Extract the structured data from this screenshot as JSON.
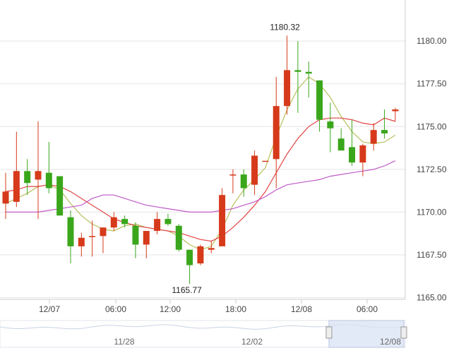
{
  "chart_data": {
    "type": "candlestick",
    "y_axis": {
      "ticks": [
        "1180.00",
        "1177.50",
        "1175.00",
        "1172.50",
        "1170.00",
        "1167.50",
        "1165.00"
      ],
      "range": [
        1164.9,
        1182.4
      ],
      "position": "right"
    },
    "x_axis": {
      "ticks": [
        "12/07",
        "06:00",
        "12:00",
        "18:00",
        "12/08",
        "06:00"
      ]
    },
    "colors": {
      "up": "#d63a1a",
      "down": "#3aa61b",
      "ma_short": "#b8bf5a",
      "ma_mid": "#e14444",
      "ma_long": "#c05ac7",
      "grid": "#e5e5e5"
    },
    "candles": [
      {
        "o": 1170.5,
        "h": 1172.3,
        "l": 1169.6,
        "c": 1171.2
      },
      {
        "o": 1170.6,
        "h": 1174.7,
        "l": 1170.3,
        "c": 1172.4
      },
      {
        "o": 1172.4,
        "h": 1173.1,
        "l": 1171.0,
        "c": 1171.7
      },
      {
        "o": 1171.9,
        "h": 1175.3,
        "l": 1169.6,
        "c": 1172.4
      },
      {
        "o": 1172.3,
        "h": 1174.1,
        "l": 1171.1,
        "c": 1171.4
      },
      {
        "o": 1172.1,
        "h": 1172.1,
        "l": 1169.9,
        "c": 1169.8
      },
      {
        "o": 1169.7,
        "h": 1170.1,
        "l": 1167.0,
        "c": 1168.0
      },
      {
        "o": 1168.0,
        "h": 1168.8,
        "l": 1167.4,
        "c": 1168.5
      },
      {
        "o": 1168.6,
        "h": 1169.5,
        "l": 1167.4,
        "c": 1168.6
      },
      {
        "o": 1168.6,
        "h": 1169.1,
        "l": 1167.6,
        "c": 1169.1
      },
      {
        "o": 1169.1,
        "h": 1170.0,
        "l": 1168.9,
        "c": 1169.7
      },
      {
        "o": 1169.6,
        "h": 1169.8,
        "l": 1169.1,
        "c": 1169.3
      },
      {
        "o": 1169.2,
        "h": 1169.4,
        "l": 1167.3,
        "c": 1168.1
      },
      {
        "o": 1168.1,
        "h": 1168.9,
        "l": 1167.3,
        "c": 1168.9
      },
      {
        "o": 1168.9,
        "h": 1170.0,
        "l": 1168.7,
        "c": 1169.6
      },
      {
        "o": 1169.6,
        "h": 1169.9,
        "l": 1169.2,
        "c": 1169.3
      },
      {
        "o": 1169.2,
        "h": 1169.3,
        "l": 1167.7,
        "c": 1167.8
      },
      {
        "o": 1167.8,
        "h": 1167.8,
        "l": 1165.8,
        "c": 1166.9
      },
      {
        "o": 1167.0,
        "h": 1168.1,
        "l": 1166.9,
        "c": 1168.0
      },
      {
        "o": 1167.8,
        "h": 1168.3,
        "l": 1167.6,
        "c": 1167.9
      },
      {
        "o": 1168.0,
        "h": 1171.4,
        "l": 1168.0,
        "c": 1171.0
      },
      {
        "o": 1172.2,
        "h": 1172.5,
        "l": 1171.1,
        "c": 1172.2
      },
      {
        "o": 1172.2,
        "h": 1172.5,
        "l": 1170.9,
        "c": 1171.4
      },
      {
        "o": 1171.6,
        "h": 1173.6,
        "l": 1171.0,
        "c": 1173.3
      },
      {
        "o": 1173.0,
        "h": 1173.0,
        "l": 1173.0,
        "c": 1173.0
      },
      {
        "o": 1173.1,
        "h": 1177.9,
        "l": 1171.4,
        "c": 1176.2
      },
      {
        "o": 1176.2,
        "h": 1180.32,
        "l": 1175.7,
        "c": 1178.3
      },
      {
        "o": 1178.3,
        "h": 1180.0,
        "l": 1175.8,
        "c": 1178.2
      },
      {
        "o": 1178.2,
        "h": 1178.8,
        "l": 1176.7,
        "c": 1178.1
      },
      {
        "o": 1177.7,
        "h": 1177.7,
        "l": 1174.7,
        "c": 1175.4
      },
      {
        "o": 1175.3,
        "h": 1176.4,
        "l": 1173.5,
        "c": 1174.9
      },
      {
        "o": 1174.3,
        "h": 1174.9,
        "l": 1173.6,
        "c": 1173.6
      },
      {
        "o": 1173.8,
        "h": 1175.4,
        "l": 1172.7,
        "c": 1172.9
      },
      {
        "o": 1172.9,
        "h": 1174.0,
        "l": 1172.1,
        "c": 1173.9
      },
      {
        "o": 1174.0,
        "h": 1175.2,
        "l": 1173.6,
        "c": 1174.8
      },
      {
        "o": 1174.8,
        "h": 1176.0,
        "l": 1174.3,
        "c": 1174.6
      },
      {
        "o": 1175.9,
        "h": 1176.1,
        "l": 1175.3,
        "c": 1176.0
      }
    ],
    "moving_averages": [
      {
        "color": "#b8bf5a",
        "values": [
          1170.5,
          1170.8,
          1171.1,
          1171.5,
          1171.6,
          1171.3,
          1170.5,
          1169.8,
          1169.3,
          1169.0,
          1168.9,
          1169.2,
          1169.3,
          1169.1,
          1169.0,
          1168.9,
          1168.6,
          1168.1,
          1167.8,
          1168.0,
          1169.0,
          1170.4,
          1171.3,
          1171.9,
          1172.6,
          1174.4,
          1176.0,
          1177.2,
          1177.9,
          1177.5,
          1176.7,
          1175.6,
          1174.7,
          1174.1,
          1174.0,
          1174.1,
          1174.5
        ]
      },
      {
        "color": "#e14444",
        "values": [
          1171.2,
          1171.3,
          1171.5,
          1171.5,
          1171.6,
          1171.5,
          1171.2,
          1170.8,
          1170.4,
          1170.0,
          1169.6,
          1169.4,
          1169.2,
          1169.1,
          1169.0,
          1168.9,
          1168.8,
          1168.6,
          1168.4,
          1168.3,
          1168.6,
          1169.1,
          1169.7,
          1170.4,
          1171.2,
          1172.3,
          1173.4,
          1174.3,
          1175.0,
          1175.4,
          1175.5,
          1175.5,
          1175.4,
          1175.2,
          1175.1,
          1175.5,
          1175.3
        ]
      },
      {
        "color": "#c05ac7",
        "values": [
          1170.0,
          1170.0,
          1170.0,
          1170.0,
          1170.1,
          1170.2,
          1170.3,
          1170.4,
          1170.8,
          1171.0,
          1171.0,
          1170.8,
          1170.6,
          1170.4,
          1170.3,
          1170.2,
          1170.1,
          1170.0,
          1170.0,
          1170.0,
          1170.1,
          1170.2,
          1170.4,
          1170.6,
          1170.9,
          1171.3,
          1171.6,
          1171.7,
          1171.8,
          1171.9,
          1172.1,
          1172.2,
          1172.3,
          1172.4,
          1172.5,
          1172.7,
          1173.0
        ]
      }
    ],
    "annotations": [
      {
        "text": "1180.32",
        "value": 1180.32,
        "candle": 26,
        "where": "above"
      },
      {
        "text": "1165.77",
        "value": 1165.77,
        "candle": 17,
        "where": "below"
      }
    ],
    "navigator": {
      "labels": [
        "11/28",
        "12/02",
        "12/08"
      ],
      "window": [
        0.715,
        0.875
      ]
    }
  }
}
